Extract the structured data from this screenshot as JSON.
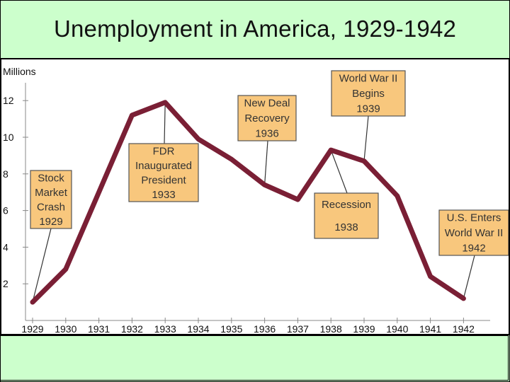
{
  "slide": {
    "title": "Unemployment in America, 1929-1942"
  },
  "colors": {
    "background": "#ccffcc",
    "line": "#7a1f35",
    "callout_fill": "#f8c77d",
    "callout_border": "#555555",
    "axis": "#888888"
  },
  "chart_data": {
    "type": "line",
    "title": "",
    "xlabel": "",
    "ylabel": "Millions",
    "x": [
      "1929",
      "1930",
      "1931",
      "1932",
      "1933",
      "1934",
      "1935",
      "1936",
      "1937",
      "1938",
      "1939",
      "1940",
      "1941",
      "1942"
    ],
    "series": [
      {
        "values": [
          1.0,
          2.8,
          7.0,
          11.2,
          11.9,
          9.9,
          8.8,
          7.4,
          6.6,
          9.3,
          8.7,
          6.8,
          2.4,
          1.2
        ]
      }
    ],
    "yticks": [
      2,
      4,
      6,
      8,
      10,
      12
    ],
    "ylim": [
      0,
      13.5
    ],
    "grid": false,
    "legend": "none",
    "annotations": [
      {
        "x": "1929",
        "lines": [
          "Stock",
          "Market",
          "Crash",
          "1929"
        ]
      },
      {
        "x": "1933",
        "lines": [
          "FDR",
          "Inaugurated",
          "President",
          "1933"
        ]
      },
      {
        "x": "1936",
        "lines": [
          "New Deal",
          "Recovery",
          "1936"
        ]
      },
      {
        "x": "1938",
        "lines": [
          "Recession",
          "1938"
        ]
      },
      {
        "x": "1939",
        "lines": [
          "World War II",
          "Begins",
          "1939"
        ]
      },
      {
        "x": "1942",
        "lines": [
          "U.S. Enters",
          "World War II",
          "1942"
        ]
      }
    ]
  }
}
